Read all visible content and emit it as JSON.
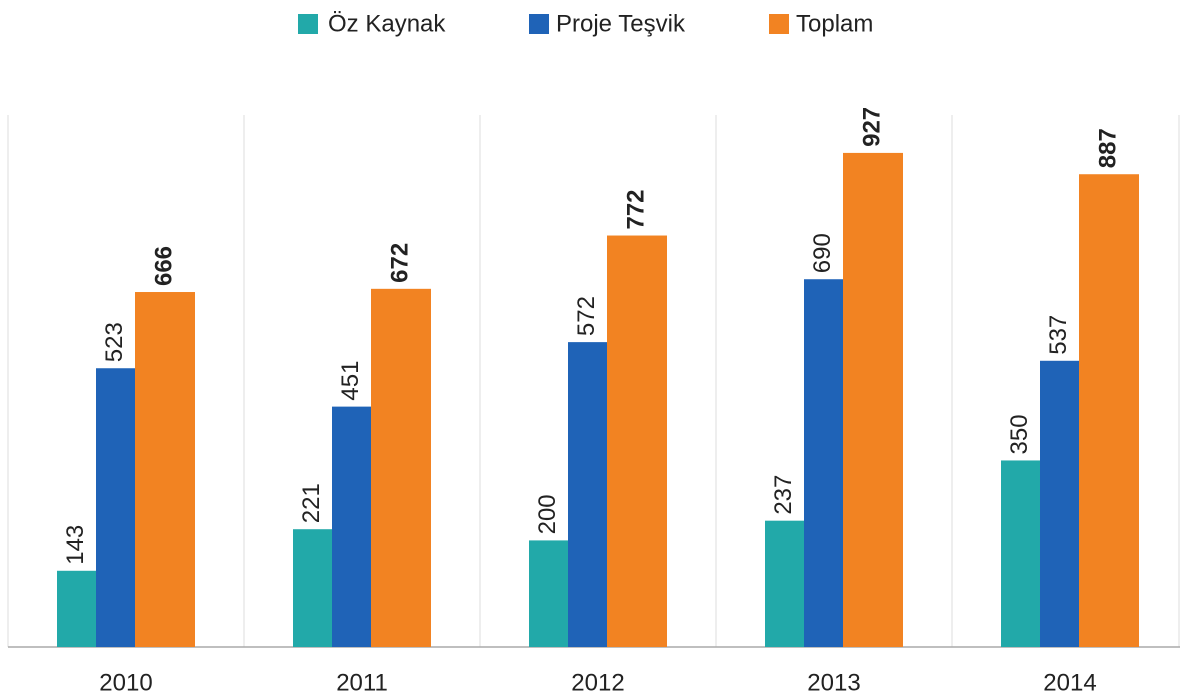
{
  "chart_data": {
    "type": "bar",
    "categories": [
      "2010",
      "2011",
      "2012",
      "2013",
      "2014"
    ],
    "series": [
      {
        "name": "Öz Kaynak",
        "color": "#22a9a9",
        "values": [
          143,
          221,
          200,
          237,
          350
        ]
      },
      {
        "name": "Proje Teşvik",
        "color": "#1f63b7",
        "values": [
          523,
          451,
          572,
          690,
          537
        ]
      },
      {
        "name": "Toplam",
        "color": "#f28322",
        "values": [
          666,
          672,
          772,
          927,
          887
        ]
      }
    ],
    "legend": "top"
  }
}
